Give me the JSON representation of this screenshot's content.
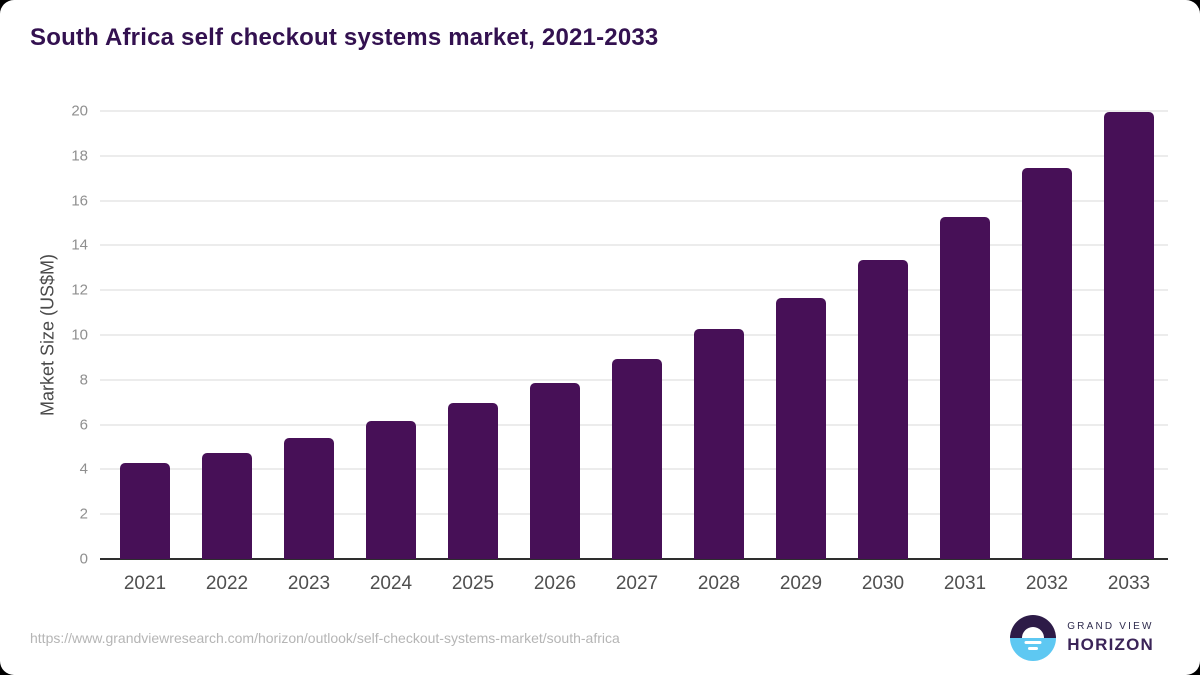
{
  "title": "South Africa self checkout systems market, 2021-2033",
  "chart_data": {
    "type": "bar",
    "title": "South Africa self checkout systems market, 2021-2033",
    "categories": [
      "2021",
      "2022",
      "2023",
      "2024",
      "2025",
      "2026",
      "2027",
      "2028",
      "2029",
      "2030",
      "2031",
      "2032",
      "2033"
    ],
    "values": [
      4.3,
      4.75,
      5.4,
      6.15,
      6.95,
      7.85,
      8.95,
      10.25,
      11.65,
      13.35,
      15.25,
      17.45,
      19.95
    ],
    "xlabel": "",
    "ylabel": "Market Size (US$M)",
    "ylim": [
      0,
      20
    ],
    "ytick_step": 2,
    "yticks": [
      0,
      2,
      4,
      6,
      8,
      10,
      12,
      14,
      16,
      18,
      20
    ],
    "grid": true,
    "legend": "none",
    "bar_color": "#471057"
  },
  "footer": {
    "source_url": "https://www.grandviewresearch.com/horizon/outlook/self-checkout-systems-market/south-africa",
    "logo": {
      "line1": "GRAND VIEW",
      "line2": "HORIZON"
    }
  },
  "colors": {
    "title_text": "#331150",
    "bar_fill": "#471057",
    "axis_line": "#2e2e2e",
    "gridline": "#ececec",
    "ytick_text": "#8f8f8f",
    "xtick_text": "#4f4f4f",
    "url_text": "#b5b5b5",
    "logo_blue": "#5ec8f2",
    "logo_dark": "#2d1b47",
    "card_background": "#ffffff"
  }
}
